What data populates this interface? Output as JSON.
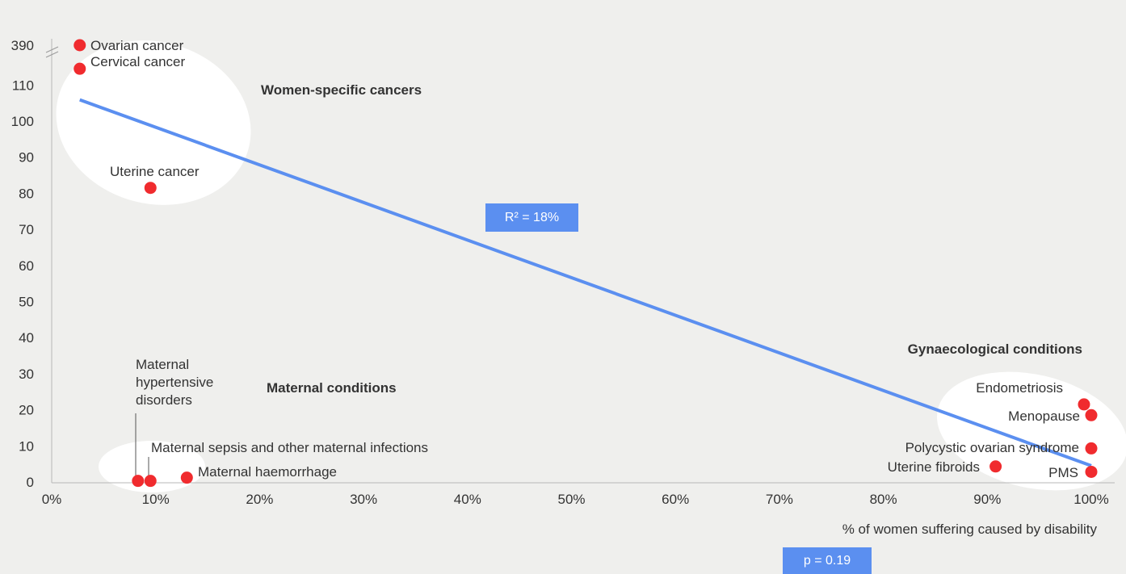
{
  "chart_data": {
    "type": "scatter",
    "xlabel": "% of women suffering caused by disability",
    "ylabel": "",
    "x_ticks": [
      "0%",
      "10%",
      "20%",
      "30%",
      "40%",
      "50%",
      "60%",
      "70%",
      "80%",
      "90%",
      "100%"
    ],
    "y_ticks": [
      "0",
      "10",
      "20",
      "30",
      "40",
      "50",
      "60",
      "70",
      "80",
      "90",
      "100",
      "110",
      "390"
    ],
    "xlim": [
      0,
      100
    ],
    "ylim": [
      0,
      120
    ],
    "axis_break": {
      "below": 110,
      "top_value": 390
    },
    "points": [
      {
        "label": "Ovarian cancer",
        "x": 2.7,
        "y": 390,
        "broken_axis": true
      },
      {
        "label": "Cervical cancer",
        "x": 2.7,
        "y": 114.5
      },
      {
        "label": "Uterine cancer",
        "x": 9.5,
        "y": 81.5
      },
      {
        "label": "Maternal hypertensive disorders",
        "x": 8.3,
        "y": 0.3
      },
      {
        "label": "Maternal sepsis and other maternal infections",
        "x": 9.5,
        "y": 0.3
      },
      {
        "label": "Maternal haemorrhage",
        "x": 13.0,
        "y": 1.2
      },
      {
        "label": "Endometriosis",
        "x": 99.3,
        "y": 21.5
      },
      {
        "label": "Menopause",
        "x": 100,
        "y": 18.5
      },
      {
        "label": "Polycystic ovarian syndrome",
        "x": 100,
        "y": 9.3
      },
      {
        "label": "Uterine fibroids",
        "x": 90.8,
        "y": 4.3
      },
      {
        "label": "PMS",
        "x": 100,
        "y": 2.8
      }
    ],
    "trendline": {
      "x": [
        2.7,
        100
      ],
      "y": [
        105.9,
        4.5
      ]
    },
    "groups": [
      "Women-specific cancers",
      "Maternal conditions",
      "Gynaecological conditions"
    ],
    "r_squared_label": "R² = 18%",
    "p_value_label": "p = 0.19",
    "colors": {
      "points": "#f02b2e",
      "trendline": "#5b8ff0",
      "highlight": "#ffffff",
      "badge": "#5b8ff0",
      "axis": "#b7b7b7"
    }
  }
}
